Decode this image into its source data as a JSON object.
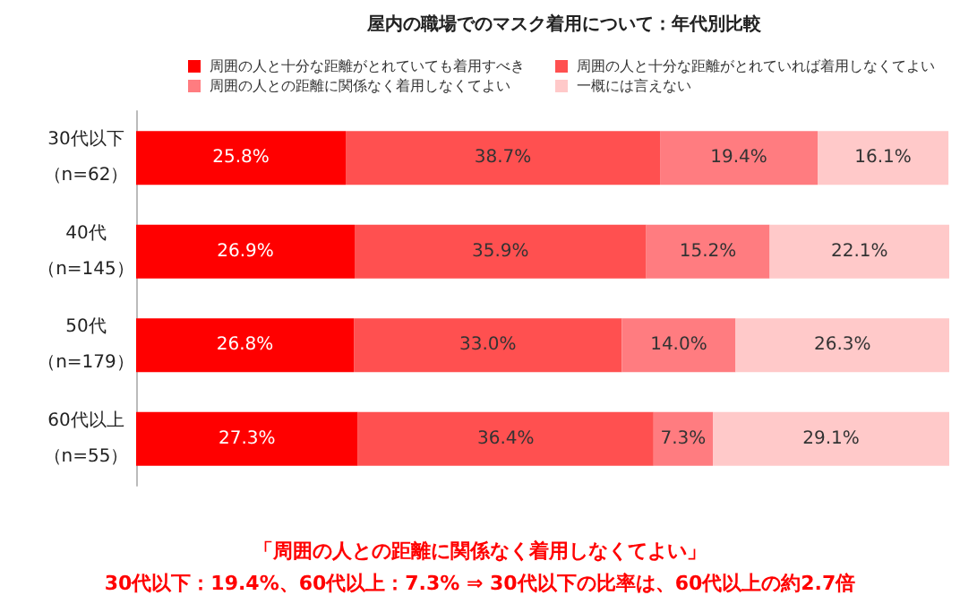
{
  "chart_data": {
    "type": "bar",
    "orientation": "horizontal",
    "stacked": true,
    "title": "屋内の職場でのマスク着用について：年代別比較",
    "categories": [
      "30代以下（n=62）",
      "40代（n=145）",
      "50代（n=179）",
      "60代以上（n=55）"
    ],
    "series": [
      {
        "name": "周囲の人と十分な距離がとれていても着用すべき",
        "color": "#ff0000",
        "values": [
          25.8,
          26.9,
          26.8,
          27.3
        ],
        "value_labels": [
          "25.8%",
          "26.9%",
          "26.8%",
          "27.3%"
        ]
      },
      {
        "name": "周囲の人と十分な距離がとれていれば着用しなくてよい",
        "color": "#ff5050",
        "values": [
          38.7,
          35.9,
          33.0,
          36.4
        ],
        "value_labels": [
          "38.7%",
          "35.9%",
          "33.0%",
          "36.4%"
        ]
      },
      {
        "name": "周囲の人との距離に関係なく着用しなくてよい",
        "color": "#ff7c80",
        "values": [
          19.4,
          15.2,
          14.0,
          7.3
        ],
        "value_labels": [
          "19.4%",
          "15.2%",
          "14.0%",
          "7.3%"
        ]
      },
      {
        "name": "一概には言えない",
        "color": "#ffc9c9",
        "values": [
          16.1,
          22.1,
          26.3,
          29.1
        ],
        "value_labels": [
          "16.1%",
          "22.1%",
          "26.3%",
          "29.1%"
        ]
      }
    ],
    "legend": "top",
    "tick_labels": "y",
    "annotations": [
      "「周囲の人との距離に関係なく着用しなくてよい」",
      "30代以下：19.4%、60代以上：7.3% ⇒ 30代以下の比率は、60代以上の約2.7倍"
    ]
  }
}
